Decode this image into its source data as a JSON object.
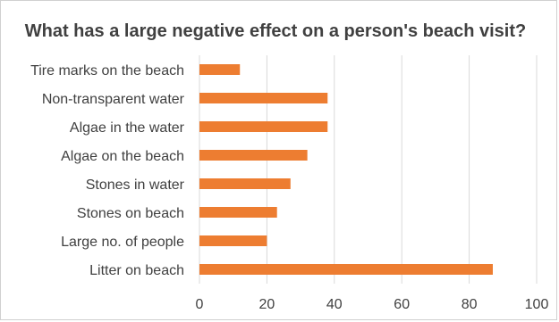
{
  "chart_data": {
    "type": "bar",
    "orientation": "horizontal",
    "title": "What has a large negative effect on a person's beach visit?",
    "categories": [
      "Tire marks on the beach",
      "Non-transparent water",
      "Algae in the water",
      "Algae on the beach",
      "Stones in water",
      "Stones on beach",
      "Large no. of people",
      "Litter on beach"
    ],
    "values": [
      12,
      38,
      38,
      32,
      27,
      23,
      20,
      87
    ],
    "xlabel": "",
    "ylabel": "",
    "xlim": [
      0,
      100
    ],
    "xticks": [
      "0",
      "20",
      "40",
      "60",
      "80",
      "100"
    ],
    "grid": "vertical",
    "legend": "none",
    "bar_color": "#ED7D31"
  }
}
